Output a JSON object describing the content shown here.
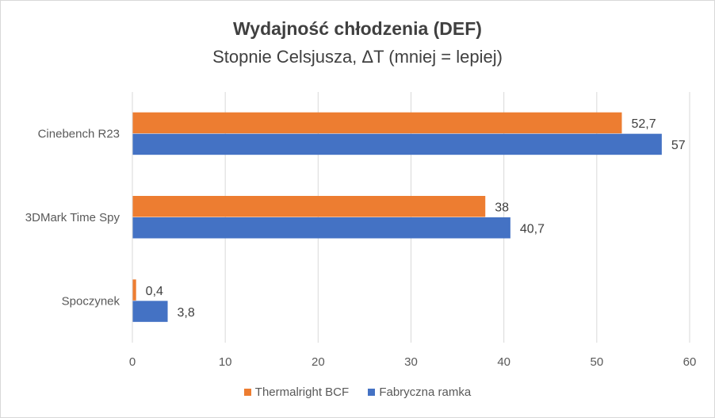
{
  "chart_data": {
    "type": "bar",
    "orientation": "horizontal",
    "title": "Wydajność chłodzenia (DEF)",
    "subtitle": "Stopnie Celsjusza, ΔT (mniej = lepiej)",
    "categories": [
      "Cinebench R23",
      "3DMark Time Spy",
      "Spoczynek"
    ],
    "series": [
      {
        "name": "Thermalright BCF",
        "color": "#ED7D31",
        "values": [
          52.7,
          38,
          0.4
        ],
        "labels": [
          "52,7",
          "38",
          "0,4"
        ]
      },
      {
        "name": "Fabryczna ramka",
        "color": "#4472C4",
        "values": [
          57,
          40.7,
          3.8
        ],
        "labels": [
          "57",
          "40,7",
          "3,8"
        ]
      }
    ],
    "xlim": [
      0,
      60
    ],
    "xticks": [
      0,
      10,
      20,
      30,
      40,
      50,
      60
    ],
    "grid": true,
    "legend": "bottom"
  }
}
